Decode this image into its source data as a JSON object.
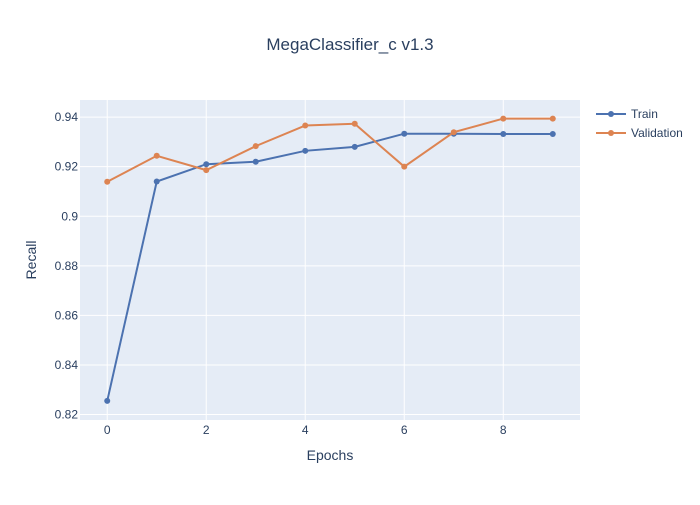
{
  "chart_data": {
    "type": "line",
    "title": "MegaClassifier_c v1.3",
    "xlabel": "Epochs",
    "ylabel": "Recall",
    "x": [
      0,
      1,
      2,
      3,
      4,
      5,
      6,
      7,
      8,
      9
    ],
    "xlim": [
      -0.55,
      9.55
    ],
    "ylim": [
      0.8178,
      0.9469
    ],
    "x_ticks": [
      0,
      2,
      4,
      6,
      8
    ],
    "x_tick_labels": [
      "0",
      "2",
      "4",
      "6",
      "8"
    ],
    "y_ticks": [
      0.82,
      0.84,
      0.86,
      0.88,
      0.9,
      0.92,
      0.94
    ],
    "y_tick_labels": [
      "0.82",
      "0.84",
      "0.86",
      "0.88",
      "0.9",
      "0.92",
      "0.94"
    ],
    "grid": true,
    "legend_position": "top-right",
    "plot_background": "#e5ecf6",
    "series": [
      {
        "name": "Train",
        "color": "#4c72b0",
        "values": [
          0.8255,
          0.914,
          0.921,
          0.922,
          0.9264,
          0.928,
          0.9333,
          0.9333,
          0.9332,
          0.9332
        ]
      },
      {
        "name": "Validation",
        "color": "#dd8452",
        "values": [
          0.9139,
          0.9244,
          0.9186,
          0.9283,
          0.9366,
          0.9373,
          0.92,
          0.9339,
          0.9394,
          0.9394
        ]
      }
    ]
  }
}
